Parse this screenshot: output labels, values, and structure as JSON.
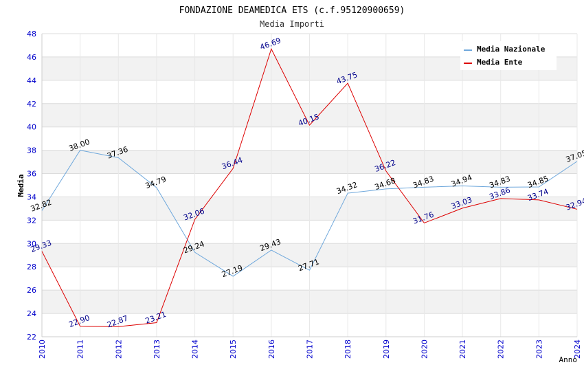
{
  "chart_data": {
    "type": "line",
    "title": "FONDAZIONE DEAMEDICA ETS (c.f.95120900659)",
    "subtitle": "Media Importi",
    "xlabel": "Anno",
    "ylabel": "Media",
    "ylim": [
      22,
      48
    ],
    "yticks": [
      "22",
      "24",
      "26",
      "28",
      "30",
      "32",
      "34",
      "36",
      "38",
      "40",
      "42",
      "44",
      "46",
      "48"
    ],
    "x": [
      "2010",
      "2011",
      "2012",
      "2013",
      "2014",
      "2015",
      "2016",
      "2017",
      "2018",
      "2019",
      "2020",
      "2021",
      "2022",
      "2023",
      "2024"
    ],
    "grid": true,
    "legend_position": "top-right",
    "series": [
      {
        "name": "Media Nazionale",
        "color": "#6fa8dc",
        "label_color": "#000000",
        "values": [
          32.82,
          38.0,
          37.36,
          34.79,
          29.24,
          27.19,
          29.43,
          27.71,
          34.32,
          34.68,
          34.83,
          34.94,
          34.83,
          34.85,
          37.05
        ],
        "labels": [
          "32.82",
          "38.00",
          "37.36",
          "34.79",
          "29.24",
          "27.19",
          "29.43",
          "27.71",
          "34.32",
          "34.68",
          "34.83",
          "34.94",
          "34.83",
          "34.85",
          "37.05"
        ]
      },
      {
        "name": "Media Ente",
        "color": "#dd0000",
        "label_color": "#00008b",
        "values": [
          29.33,
          22.9,
          22.87,
          23.21,
          32.06,
          36.44,
          46.69,
          40.15,
          43.75,
          36.22,
          31.76,
          33.03,
          33.86,
          33.74,
          32.94
        ],
        "labels": [
          "29.33",
          "22.90",
          "22.87",
          "23.21",
          "32.06",
          "36.44",
          "46.69",
          "40.15",
          "43.75",
          "36.22",
          "31.76",
          "33.03",
          "33.86",
          "33.74",
          "32.94"
        ]
      }
    ]
  }
}
